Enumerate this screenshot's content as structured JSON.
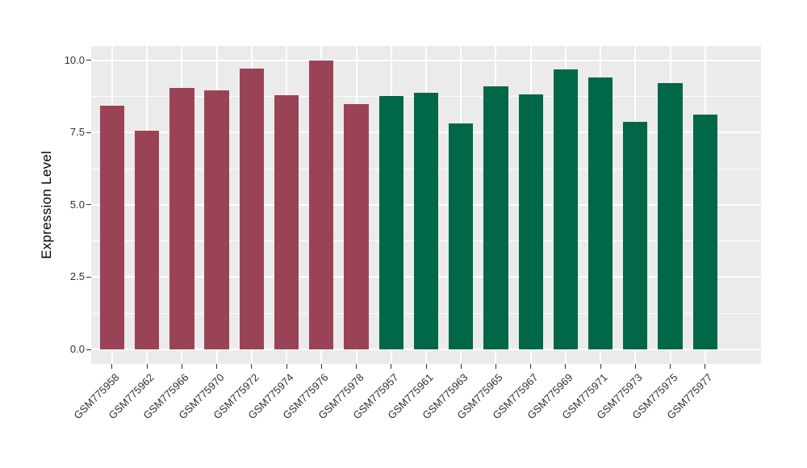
{
  "chart_data": {
    "type": "bar",
    "title": "",
    "xlabel": "",
    "ylabel": "Expression Level",
    "categories": [
      "GSM775958",
      "GSM775962",
      "GSM775966",
      "GSM775970",
      "GSM775972",
      "GSM775974",
      "GSM775976",
      "GSM775978",
      "GSM775957",
      "GSM775961",
      "GSM775963",
      "GSM775965",
      "GSM775967",
      "GSM775969",
      "GSM775971",
      "GSM775973",
      "GSM775975",
      "GSM775977"
    ],
    "values": [
      8.43,
      7.56,
      9.04,
      8.96,
      9.71,
      8.79,
      9.99,
      8.47,
      8.76,
      8.88,
      7.82,
      9.1,
      8.81,
      9.69,
      9.41,
      7.87,
      9.22,
      8.12
    ],
    "bar_group_index": [
      0,
      0,
      0,
      0,
      0,
      0,
      0,
      0,
      1,
      1,
      1,
      1,
      1,
      1,
      1,
      1,
      1,
      1
    ],
    "group_colors": [
      "#9B4356",
      "#006748"
    ],
    "ylim": [
      0,
      10.0
    ],
    "panel_value_range": [
      -0.5,
      10.49
    ],
    "yticks": [
      0.0,
      2.5,
      5.0,
      7.5,
      10.0
    ],
    "ytick_labels": [
      "0.0",
      "2.5",
      "5.0",
      "7.5",
      "10.0"
    ],
    "minor_yticks": [
      1.25,
      3.75,
      6.25,
      8.75
    ],
    "grid": true,
    "legend": "none",
    "bar_width_fraction": 0.7,
    "x_label_rotation_deg": 45,
    "colors": {
      "panel_background": "#EBEBEB",
      "gridline": "#FFFFFF",
      "axis_text": "#303030",
      "tick_mark": "#333333"
    }
  }
}
